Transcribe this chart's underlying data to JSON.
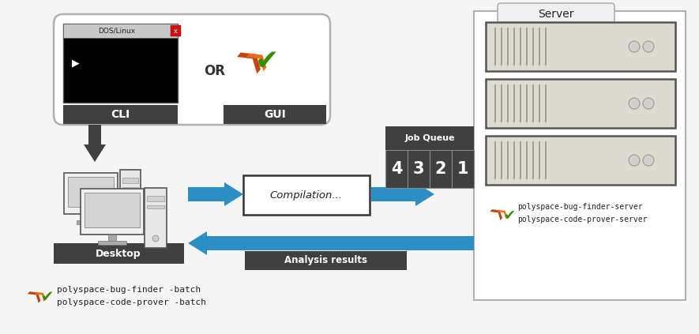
{
  "bg_color": "#f5f5f5",
  "cli_label": "CLI",
  "gui_label": "GUI",
  "or_label": "OR",
  "desktop_label": "Desktop",
  "compilation_label": "Compilation...",
  "jobqueue_label": "Job Queue",
  "jobqueue_numbers": [
    "4",
    "3",
    "2",
    "1"
  ],
  "server_label": "Server",
  "analysis_results_label": "Analysis results",
  "server_text1": "polyspace-bug-finder-server",
  "server_text2": "polyspace-code-prover-server",
  "bottom_text1": "polyspace-bug-finder -batch",
  "bottom_text2": "polyspace-code-prover -batch",
  "blue": "#2b8fc4",
  "dark": "#404040",
  "rack_fill": "#dddbd0",
  "rack_edge": "#555555"
}
